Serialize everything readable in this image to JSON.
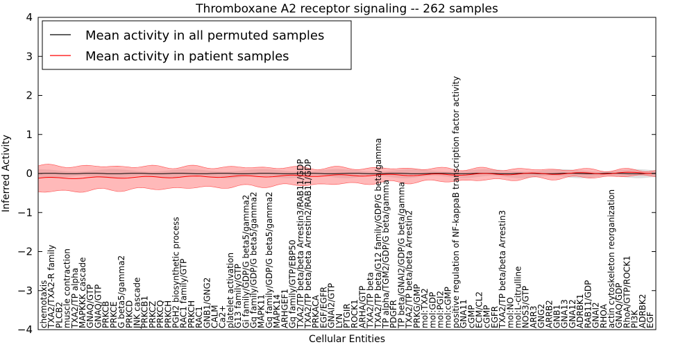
{
  "chart_data": {
    "type": "line",
    "title": "Thromboxane A2 receptor signaling -- 262 samples",
    "xlabel": "Cellular Entities",
    "ylabel": "Inferred Activity",
    "ylim": [
      -4,
      4
    ],
    "yticks": [
      -4,
      -3,
      -2,
      -1,
      0,
      1,
      2,
      3,
      4
    ],
    "grid": false,
    "legend_position": "top-left",
    "series": [
      {
        "name": "Mean activity in all permuted samples",
        "color": "#000000",
        "band_color": "#c8c8c8",
        "summary": "approximately 0 across all entities with narrow grey band (about -0.1 to 0.1)"
      },
      {
        "name": "Mean activity in patient samples",
        "color": "#ff0000",
        "band_color": "#ff8080",
        "summary": "approximately -0.1 at left rising to about 0.05 at right; red band widest at left (about -0.45 to 0.2)"
      }
    ],
    "categories": [
      "chemotaxis",
      "TXA2/TXA2-R family",
      "PLCB2",
      "muscle contraction",
      "TXA2/TP alpha",
      "MAPKKK cascade",
      "GNAQ/GTP",
      "GNAQ/GTP",
      "PRKCB",
      "PRKCE",
      "G beta5/gamma2",
      "PRKCD",
      "JNK cascade",
      "PRKCB1",
      "PRKCZ",
      "PRKCQ",
      "PRKCH",
      "PGH2 biosynthetic process",
      "RAC1 family/GTP",
      "PRKCH",
      "RAC1",
      "GNB1/GNG2",
      "CALM",
      "Ca2+",
      "platelet activation",
      "G13 family/GTP",
      "Gi family/GDP/G beta5/gamma2",
      "Gq family/GDP/G beta5/gamma2",
      "MAPK11",
      "Gq family/GDP/G beta5/gamma2",
      "MAPK14",
      "ARHGEF1",
      "Gq family/GTP/EBP50",
      "TXA2/TP beta/beta Arrestin3/RAB11/GDP",
      "TXA2/TP beta/beta Arrestin2/RAB11/GDP",
      "PRKACA",
      "EGF/EGFR",
      "GNAI2/GTP",
      "LYN",
      "PTGIR",
      "ROCK1",
      "ARHA/GTP",
      "TXA2/TP beta",
      "TXA2/TP beta/G12 family/GDP/G beta/gamma",
      "TP alpha/TGM2/GDP/G beta/gamma",
      "PDGFR",
      "TP beta/GNAI2/GDP/G beta/gamma",
      "TXA2/TP beta/beta Arrestin2",
      "PRKG/GMP",
      "mol:TXA2",
      "mol:GDP",
      "mol:PGI2",
      "mol:cGMP",
      "positive regulation of NF-kappaB transcription factor activity",
      "GNA11",
      "cGMP",
      "ECM/CL2",
      "cGMP",
      "EGFR",
      "TXA2/TP beta/beta Arrestin3",
      "mol:NO",
      "mol:L-citrulline",
      "NOS3/GTP",
      "ARR3",
      "GNG2",
      "ARRB2",
      "GNB1",
      "GNA13",
      "GNA12",
      "ADRBK1",
      "RAB11/GDP",
      "GNAI2",
      "RHOA",
      "actin cytoskeleton reorganization",
      "GNAQ/GDP",
      "RhoA/GTP/ROCK1",
      "PI3K",
      "ADRBK2",
      "EGF"
    ]
  }
}
